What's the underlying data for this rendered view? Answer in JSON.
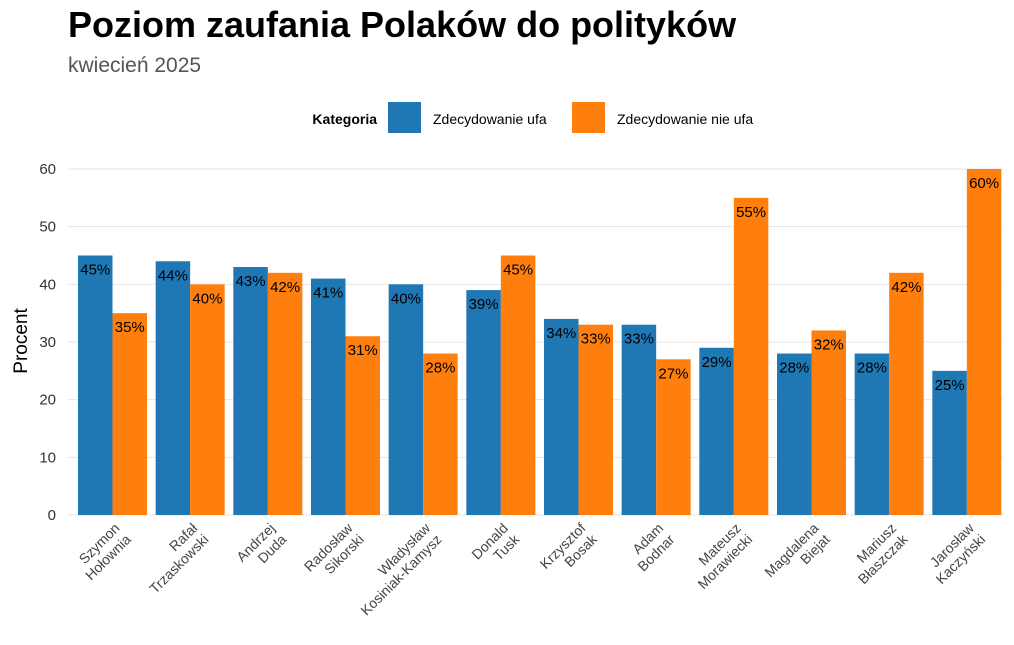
{
  "chart_data": {
    "type": "bar",
    "title": "Poziom zaufania Polaków do polityków",
    "subtitle": "kwiecień 2025",
    "xlabel": "",
    "ylabel": "Procent",
    "ylim": [
      0,
      60
    ],
    "yticks": [
      "0",
      "10",
      "20",
      "30",
      "40",
      "50",
      "60"
    ],
    "grid": true,
    "legend": {
      "title": "Kategoria",
      "placement": "top"
    },
    "categories": [
      [
        "Szymon",
        "Hołownia"
      ],
      [
        "Rafał",
        "Trzaskowski"
      ],
      [
        "Andrzej",
        "Duda"
      ],
      [
        "Radosław",
        "Sikorski"
      ],
      [
        "Władysław",
        "Kosiniak-Kamysz"
      ],
      [
        "Donald",
        "Tusk"
      ],
      [
        "Krzysztof",
        "Bosak"
      ],
      [
        "Adam",
        "Bodnar"
      ],
      [
        "Mateusz",
        "Morawiecki"
      ],
      [
        "Magdalena",
        "Biejat"
      ],
      [
        "Mariusz",
        "Błaszczak"
      ],
      [
        "Jarosław",
        "Kaczyński"
      ]
    ],
    "series": [
      {
        "name": "Zdecydowanie ufa",
        "color": "#1f77b4",
        "values": [
          45,
          44,
          43,
          41,
          40,
          39,
          34,
          33,
          29,
          28,
          28,
          25
        ],
        "labels": [
          "45%",
          "44%",
          "43%",
          "41%",
          "40%",
          "39%",
          "34%",
          "33%",
          "29%",
          "28%",
          "28%",
          "25%"
        ]
      },
      {
        "name": "Zdecydowanie nie ufa",
        "color": "#ff7f0e",
        "values": [
          35,
          40,
          42,
          31,
          28,
          45,
          33,
          27,
          55,
          32,
          42,
          60
        ],
        "labels": [
          "35%",
          "40%",
          "42%",
          "31%",
          "28%",
          "45%",
          "33%",
          "27%",
          "55%",
          "32%",
          "42%",
          "60%"
        ]
      }
    ]
  }
}
